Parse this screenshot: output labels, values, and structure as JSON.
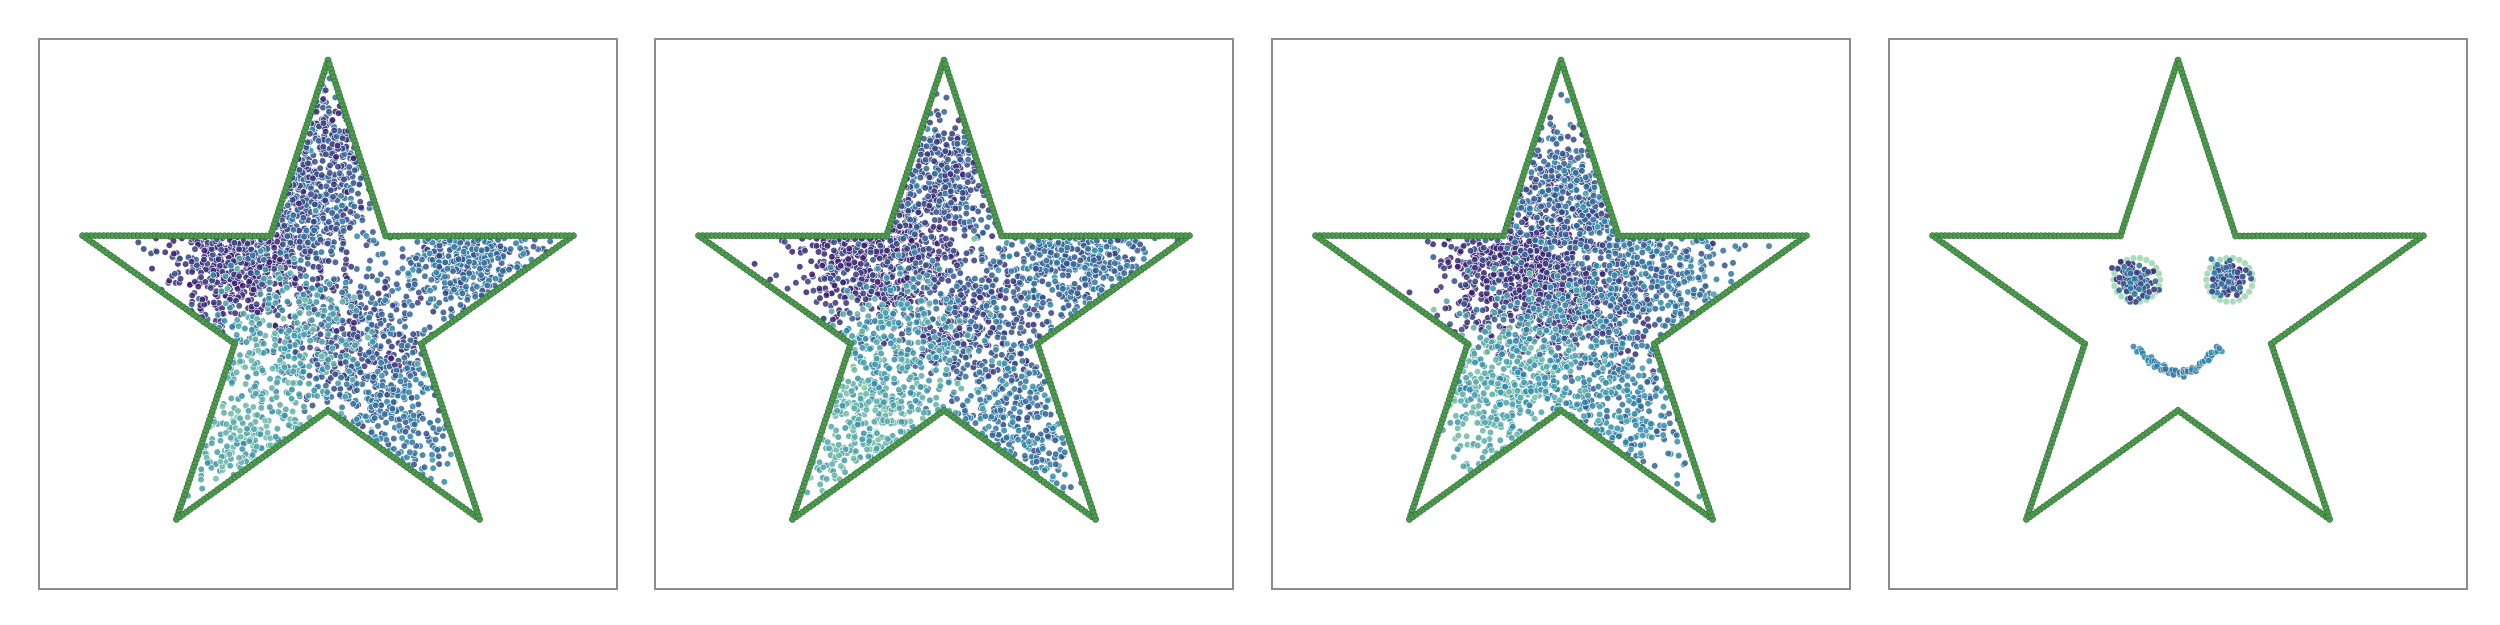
{
  "chart_data": [
    {
      "type": "scatter",
      "outline": "star",
      "xlim": [
        0,
        1
      ],
      "ylim": [
        0,
        1
      ],
      "grid": false,
      "colors": {
        "outline": "#4e9a4f",
        "density_low": "#8cd0a3",
        "density_mid": "#2d8bab",
        "density_high": "#3b1f6e"
      },
      "clusters": [
        {
          "x": 0.33,
          "y": 0.62,
          "weight": 0.22,
          "density": 0.92
        },
        {
          "x": 0.45,
          "y": 0.72,
          "weight": 0.12,
          "density": 0.72
        },
        {
          "x": 0.5,
          "y": 0.86,
          "weight": 0.08,
          "density": 0.8
        },
        {
          "x": 0.56,
          "y": 0.45,
          "weight": 0.16,
          "density": 0.78
        },
        {
          "x": 0.63,
          "y": 0.28,
          "weight": 0.1,
          "density": 0.62
        },
        {
          "x": 0.77,
          "y": 0.64,
          "weight": 0.14,
          "density": 0.66
        },
        {
          "x": 0.34,
          "y": 0.25,
          "weight": 0.08,
          "density": 0.28
        },
        {
          "x": 0.42,
          "y": 0.45,
          "weight": 0.1,
          "density": 0.35
        }
      ]
    },
    {
      "type": "scatter",
      "outline": "star",
      "xlim": [
        0,
        1
      ],
      "ylim": [
        0,
        1
      ],
      "grid": false,
      "colors": {
        "outline": "#4e9a4f",
        "density_low": "#8cd0a3",
        "density_mid": "#2d8bab",
        "density_high": "#3b1f6e"
      },
      "clusters": [
        {
          "x": 0.36,
          "y": 0.63,
          "weight": 0.22,
          "density": 0.92
        },
        {
          "x": 0.48,
          "y": 0.78,
          "weight": 0.14,
          "density": 0.78
        },
        {
          "x": 0.55,
          "y": 0.48,
          "weight": 0.18,
          "density": 0.8
        },
        {
          "x": 0.76,
          "y": 0.63,
          "weight": 0.14,
          "density": 0.66
        },
        {
          "x": 0.64,
          "y": 0.27,
          "weight": 0.1,
          "density": 0.6
        },
        {
          "x": 0.36,
          "y": 0.26,
          "weight": 0.12,
          "density": 0.25
        },
        {
          "x": 0.42,
          "y": 0.44,
          "weight": 0.1,
          "density": 0.4
        }
      ]
    },
    {
      "type": "scatter",
      "outline": "star",
      "xlim": [
        0,
        1
      ],
      "ylim": [
        0,
        1
      ],
      "grid": false,
      "colors": {
        "outline": "#4e9a4f",
        "density_low": "#8cd0a3",
        "density_mid": "#2d8bab",
        "density_high": "#3b1f6e"
      },
      "clusters": [
        {
          "x": 0.42,
          "y": 0.6,
          "weight": 0.26,
          "density": 0.94
        },
        {
          "x": 0.52,
          "y": 0.76,
          "weight": 0.14,
          "density": 0.7
        },
        {
          "x": 0.55,
          "y": 0.52,
          "weight": 0.18,
          "density": 0.82
        },
        {
          "x": 0.68,
          "y": 0.6,
          "weight": 0.12,
          "density": 0.62
        },
        {
          "x": 0.62,
          "y": 0.3,
          "weight": 0.1,
          "density": 0.55
        },
        {
          "x": 0.38,
          "y": 0.32,
          "weight": 0.12,
          "density": 0.3
        },
        {
          "x": 0.46,
          "y": 0.42,
          "weight": 0.08,
          "density": 0.42
        }
      ]
    },
    {
      "type": "scatter",
      "outline": "star",
      "xlim": [
        0,
        1
      ],
      "ylim": [
        0,
        1
      ],
      "grid": false,
      "colors": {
        "outline": "#4e9a4f",
        "density_low": "#8cd0a3",
        "density_mid": "#2d8bab",
        "density_high": "#3b1f6e"
      },
      "features": {
        "left_eye": {
          "x": 0.42,
          "y": 0.57
        },
        "right_eye": {
          "x": 0.6,
          "y": 0.57
        },
        "mouth": {
          "x": 0.5,
          "y": 0.43,
          "width": 0.16
        }
      }
    }
  ]
}
